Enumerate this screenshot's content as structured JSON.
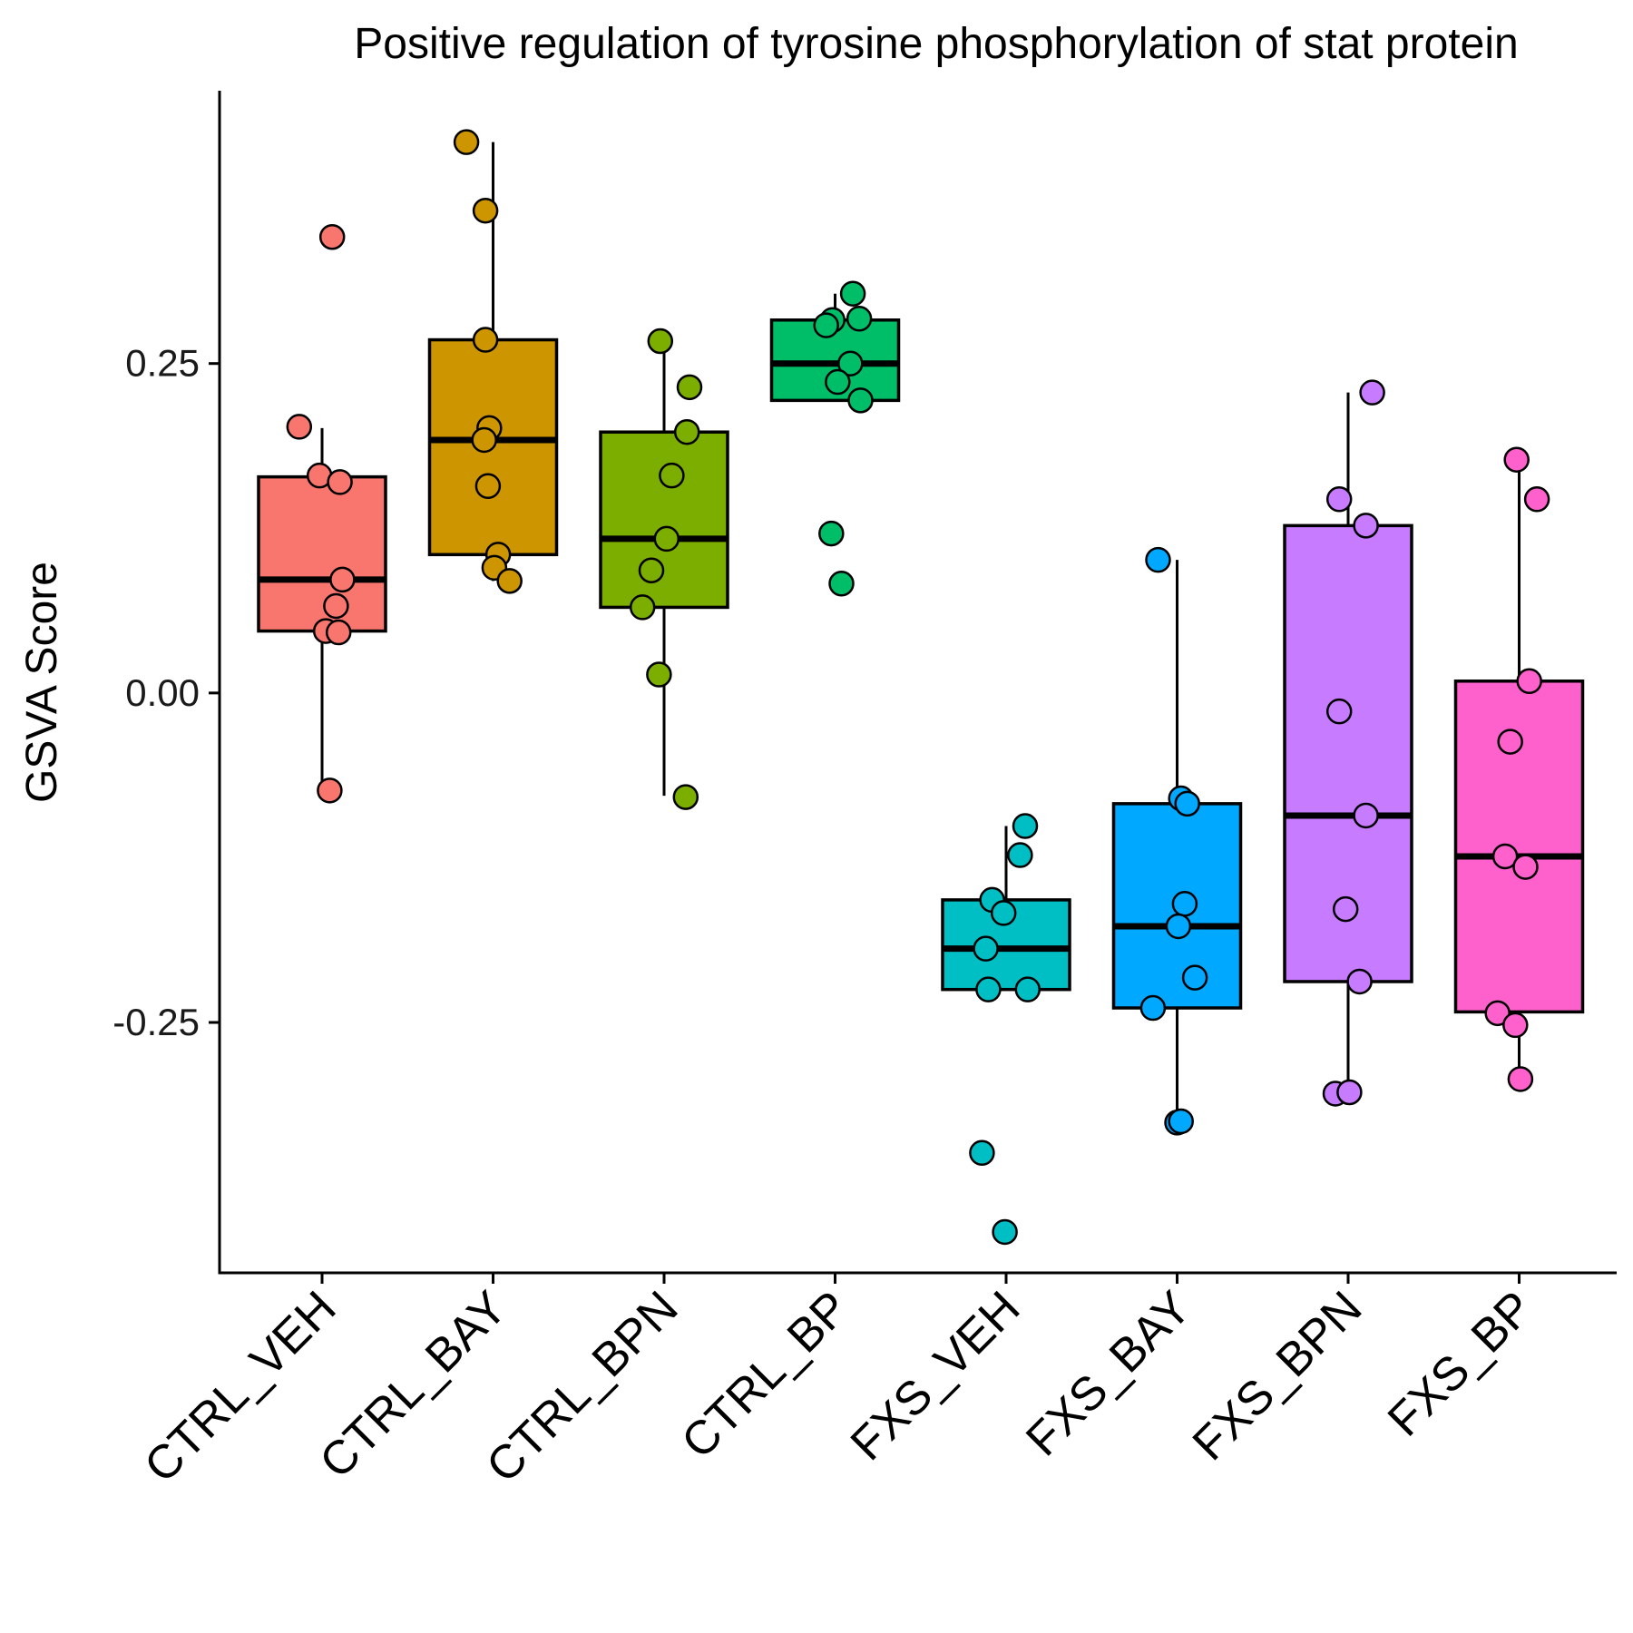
{
  "chart_data": {
    "type": "boxplot",
    "title": "Positive regulation of tyrosine phosphorylation of stat protein",
    "xlabel": "",
    "ylabel": "GSVA Score",
    "ylim": [
      -0.44,
      0.457
    ],
    "yticks": [
      0.25,
      0.0,
      -0.25
    ],
    "ytick_labels": [
      "0.25",
      "0.00",
      "-0.25"
    ],
    "grid": false,
    "legend": "none",
    "categories": [
      "CTRL_VEH",
      "CTRL_BAY",
      "CTRL_BPN",
      "CTRL_BP",
      "FXS_VEH",
      "FXS_BAY",
      "FXS_BPN",
      "FXS_BP"
    ],
    "colors": [
      "#F8766D",
      "#CD9600",
      "#7CAE00",
      "#00BE67",
      "#00BFC4",
      "#00A9FF",
      "#C77CFF",
      "#FF61CC"
    ],
    "boxes": [
      {
        "name": "CTRL_VEH",
        "whisker_low": -0.073,
        "q1": 0.047,
        "median": 0.086,
        "q3": 0.164,
        "whisker_high": 0.201
      },
      {
        "name": "CTRL_BAY",
        "whisker_low": 0.085,
        "q1": 0.105,
        "median": 0.192,
        "q3": 0.268,
        "whisker_high": 0.418
      },
      {
        "name": "CTRL_BPN",
        "whisker_low": -0.078,
        "q1": 0.065,
        "median": 0.117,
        "q3": 0.198,
        "whisker_high": 0.267
      },
      {
        "name": "CTRL_BP",
        "whisker_low": 0.222,
        "q1": 0.222,
        "median": 0.25,
        "q3": 0.283,
        "whisker_high": 0.303
      },
      {
        "name": "FXS_VEH",
        "whisker_low": -0.225,
        "q1": -0.225,
        "median": -0.194,
        "q3": -0.157,
        "whisker_high": -0.101
      },
      {
        "name": "FXS_BAY",
        "whisker_low": -0.326,
        "q1": -0.239,
        "median": -0.177,
        "q3": -0.084,
        "whisker_high": 0.101
      },
      {
        "name": "FXS_BPN",
        "whisker_low": -0.303,
        "q1": -0.219,
        "median": -0.093,
        "q3": 0.127,
        "whisker_high": 0.228
      },
      {
        "name": "FXS_BP",
        "whisker_low": -0.292,
        "q1": -0.242,
        "median": -0.124,
        "q3": 0.009,
        "whisker_high": 0.177
      }
    ],
    "points": [
      [
        [
          0.08,
          0.346
        ],
        [
          -0.18,
          0.202
        ],
        [
          -0.02,
          0.165
        ],
        [
          0.14,
          0.16
        ],
        [
          0.16,
          0.086
        ],
        [
          0.11,
          0.066
        ],
        [
          0.03,
          0.047
        ],
        [
          0.13,
          0.046
        ],
        [
          0.06,
          -0.074
        ]
      ],
      [
        [
          -0.21,
          0.418
        ],
        [
          -0.06,
          0.366
        ],
        [
          -0.06,
          0.268
        ],
        [
          -0.03,
          0.201
        ],
        [
          -0.07,
          0.192
        ],
        [
          -0.04,
          0.157
        ],
        [
          0.04,
          0.105
        ],
        [
          0.01,
          0.095
        ],
        [
          0.13,
          0.085
        ]
      ],
      [
        [
          -0.03,
          0.267
        ],
        [
          0.2,
          0.232
        ],
        [
          0.18,
          0.198
        ],
        [
          0.06,
          0.165
        ],
        [
          0.02,
          0.117
        ],
        [
          -0.1,
          0.093
        ],
        [
          -0.17,
          0.065
        ],
        [
          -0.04,
          0.014
        ],
        [
          0.17,
          -0.079
        ]
      ],
      [
        [
          0.14,
          0.303
        ],
        [
          -0.02,
          0.283
        ],
        [
          0.19,
          0.284
        ],
        [
          -0.07,
          0.279
        ],
        [
          0.12,
          0.25
        ],
        [
          0.02,
          0.236
        ],
        [
          0.2,
          0.222
        ],
        [
          -0.03,
          0.121
        ],
        [
          0.05,
          0.083
        ]
      ],
      [
        [
          0.15,
          -0.101
        ],
        [
          0.11,
          -0.123
        ],
        [
          -0.11,
          -0.157
        ],
        [
          -0.02,
          -0.167
        ],
        [
          -0.16,
          -0.194
        ],
        [
          -0.14,
          -0.225
        ],
        [
          0.17,
          -0.225
        ],
        [
          -0.19,
          -0.349
        ],
        [
          -0.01,
          -0.409
        ]
      ],
      [
        [
          -0.15,
          0.101
        ],
        [
          0.03,
          -0.08
        ],
        [
          0.08,
          -0.084
        ],
        [
          0.06,
          -0.16
        ],
        [
          0.01,
          -0.177
        ],
        [
          0.14,
          -0.216
        ],
        [
          -0.19,
          -0.239
        ],
        [
          0.0,
          -0.326
        ],
        [
          0.03,
          -0.325
        ]
      ],
      [
        [
          -0.07,
          0.147
        ],
        [
          0.19,
          0.228
        ],
        [
          0.14,
          0.127
        ],
        [
          -0.07,
          -0.014
        ],
        [
          0.14,
          -0.093
        ],
        [
          -0.02,
          -0.164
        ],
        [
          0.09,
          -0.219
        ],
        [
          -0.1,
          -0.304
        ],
        [
          0.01,
          -0.303
        ]
      ],
      [
        [
          -0.02,
          0.177
        ],
        [
          0.14,
          0.147
        ],
        [
          0.08,
          0.009
        ],
        [
          -0.07,
          -0.037
        ],
        [
          -0.11,
          -0.124
        ],
        [
          0.05,
          -0.132
        ],
        [
          -0.17,
          -0.243
        ],
        [
          -0.03,
          -0.252
        ],
        [
          0.01,
          -0.293
        ]
      ]
    ]
  }
}
